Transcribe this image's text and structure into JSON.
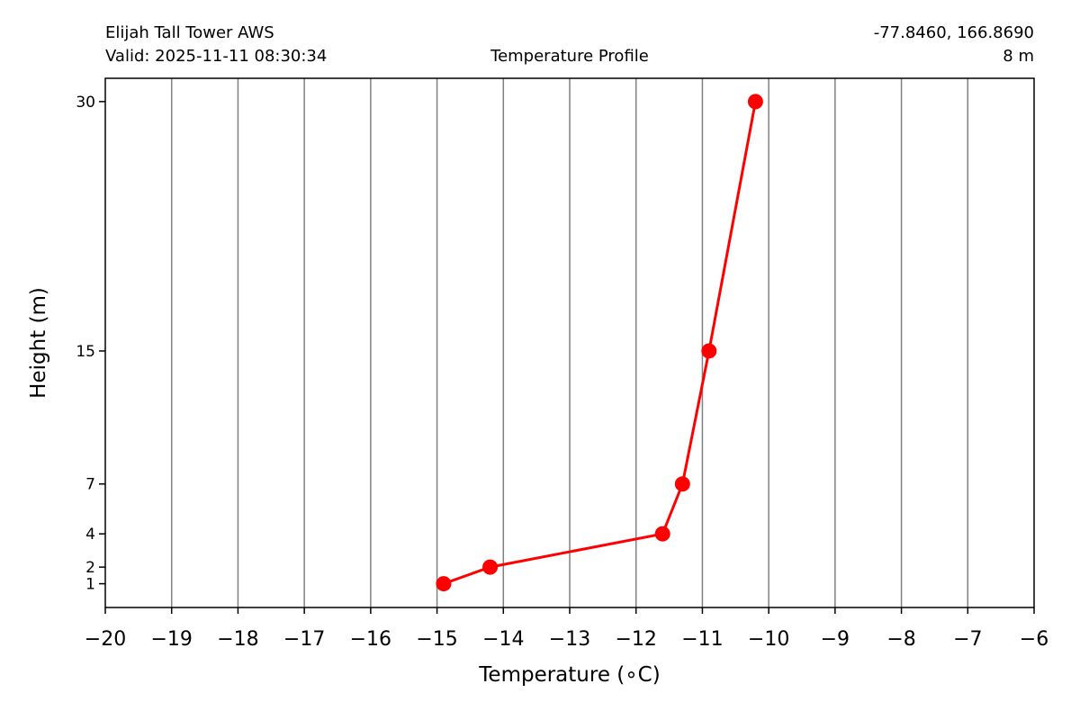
{
  "header": {
    "station": "Elijah Tall Tower AWS",
    "valid": "Valid: 2025-11-11 08:30:34",
    "plot_title": "Temperature Profile",
    "coords": "-77.8460, 166.8690",
    "elevation": "8 m"
  },
  "chart_data": {
    "type": "line",
    "title": "Temperature Profile",
    "xlabel": "Temperature (∘C)",
    "ylabel": "Height (m)",
    "xlim": [
      -20,
      -6
    ],
    "ylim": [
      -0.43,
      31.4
    ],
    "grid": "vertical",
    "xticks": [
      -20,
      -19,
      -18,
      -17,
      -16,
      -15,
      -14,
      -13,
      -12,
      -11,
      -10,
      -9,
      -8,
      -7,
      -6
    ],
    "xtick_labels": [
      "−20",
      "−19",
      "−18",
      "−17",
      "−16",
      "−15",
      "−14",
      "−13",
      "−12",
      "−11",
      "−10",
      "−9",
      "−8",
      "−7",
      "−6"
    ],
    "yticks": [
      1,
      2,
      4,
      7,
      15,
      30
    ],
    "ytick_labels": [
      "1",
      "2",
      "4",
      "7",
      "15",
      "30"
    ],
    "series": [
      {
        "name": "Temperature",
        "color": "#ff0000",
        "x": [
          -14.9,
          -14.2,
          -11.6,
          -11.3,
          -10.9,
          -10.2
        ],
        "y": [
          1,
          2,
          4,
          7,
          15,
          30
        ]
      }
    ]
  }
}
